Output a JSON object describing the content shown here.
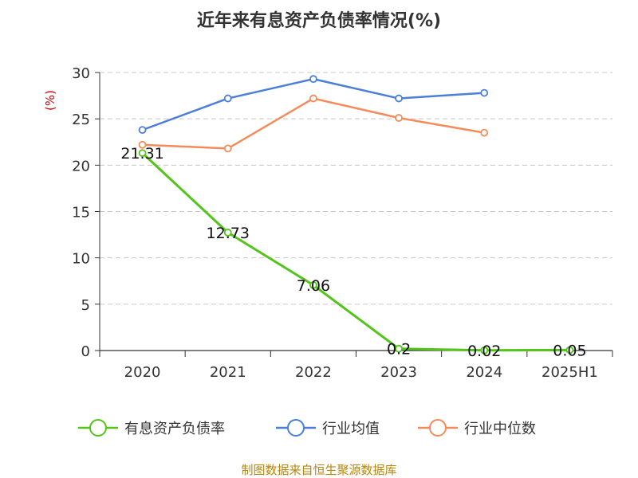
{
  "chart_data": {
    "type": "line",
    "title": "近年来有息资产负债率情况(%)",
    "ylabel": "(%)",
    "xlabel": "",
    "categories": [
      "2020",
      "2021",
      "2022",
      "2023",
      "2024",
      "2025H1"
    ],
    "ylim": [
      0,
      30
    ],
    "yticks": [
      0,
      5,
      10,
      15,
      20,
      25,
      30
    ],
    "grid": true,
    "legend_position": "bottom",
    "series": [
      {
        "name": "有息资产负债率",
        "color": "#52c41a",
        "values": [
          21.31,
          12.73,
          7.06,
          0.2,
          0.02,
          0.05
        ],
        "labels": [
          "21.31",
          "12.73",
          "7.06",
          "0.2",
          "0.02",
          "0.05"
        ]
      },
      {
        "name": "行业均值",
        "color": "#4a7fd9",
        "values": [
          23.8,
          27.2,
          29.3,
          27.2,
          27.8,
          null
        ]
      },
      {
        "name": "行业中位数",
        "color": "#f58b5a",
        "values": [
          22.2,
          21.8,
          27.2,
          25.1,
          23.5,
          null
        ]
      }
    ],
    "source": "制图数据来自恒生聚源数据库"
  }
}
